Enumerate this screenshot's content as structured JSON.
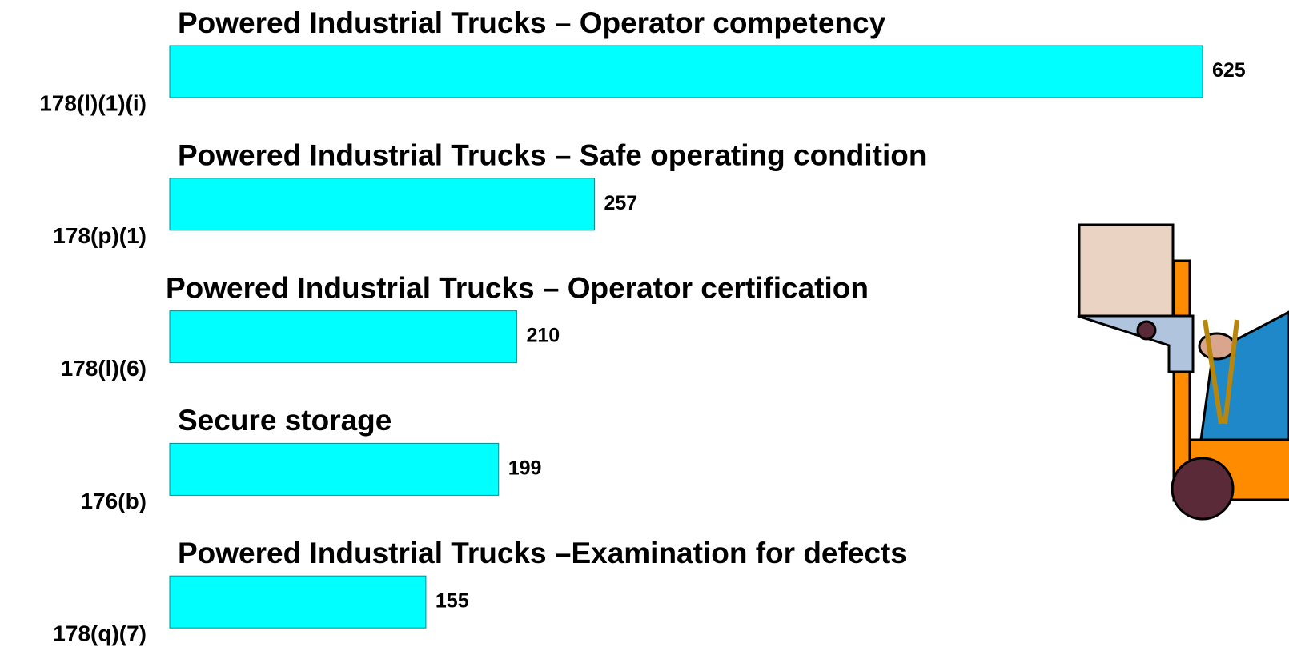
{
  "chart_data": {
    "type": "bar",
    "categories": [
      "178(l)(1)(i)",
      "178(p)(1)",
      "178(l)(6)",
      "176(b)",
      "178(q)(7)"
    ],
    "descriptions": [
      "Powered Industrial Trucks – Operator competency",
      "Powered Industrial Trucks – Safe operating condition",
      "Powered Industrial Trucks – Operator certification",
      "Secure storage",
      "Powered Industrial Trucks –Examination for defects"
    ],
    "values": [
      625,
      257,
      210,
      199,
      155
    ],
    "color": "#00ffff"
  }
}
